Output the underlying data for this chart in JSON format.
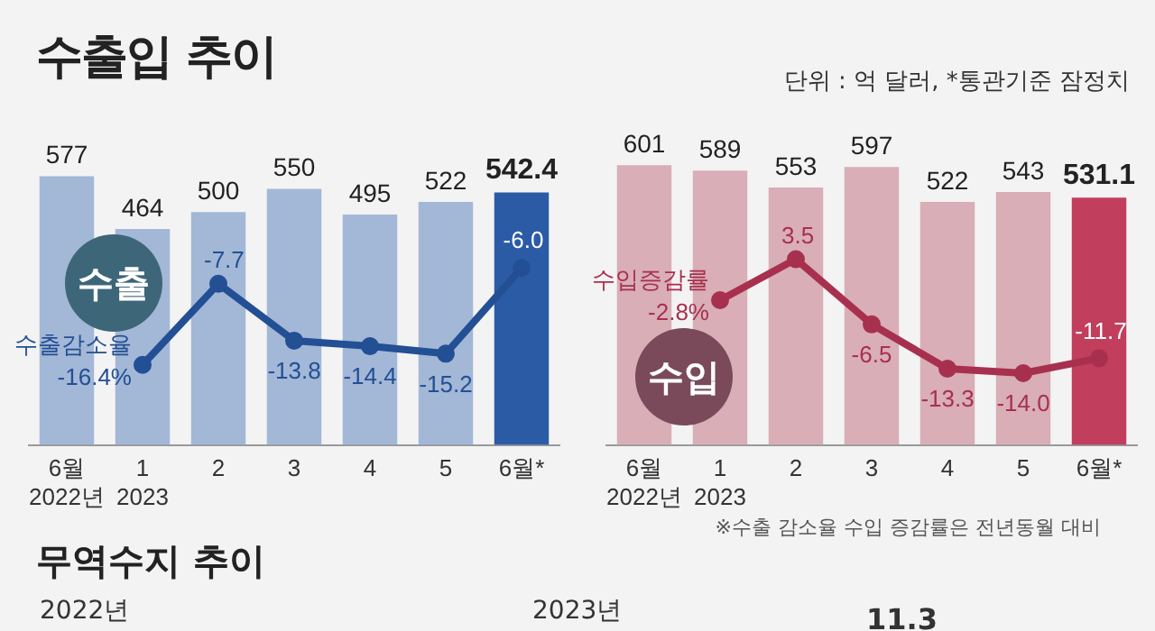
{
  "chart_data": [
    {
      "type": "bar",
      "title": "수출입 추이",
      "categories": [
        "6월\n2022년",
        "1\n2023",
        "2",
        "3",
        "4",
        "5",
        "6월*"
      ],
      "data_labels": true,
      "grid": false,
      "legend": false,
      "tick_labels": "x",
      "marker": "circle",
      "annotations": [
        "수출"
      ],
      "series": [
        {
          "type": "bar",
          "colors": [
            "#a3b7d7",
            "#a3b7d7",
            "#a3b7d7",
            "#a3b7d7",
            "#a3b7d7",
            "#a3b7d7",
            "#2c5ba6"
          ],
          "values": [
            577,
            464,
            500,
            550,
            495,
            522,
            542.4
          ]
        },
        {
          "type": "line",
          "name": "수출감소율",
          "color": "#234f94",
          "axis": "y2",
          "values": [
            null,
            -16.4,
            -7.7,
            -13.8,
            -14.4,
            -15.2,
            -6.0
          ],
          "value_labels": [
            null,
            "-16.4%",
            "-7.7",
            "-13.8",
            "-14.4",
            "-15.2",
            "-6.0"
          ]
        }
      ]
    },
    {
      "type": "bar",
      "subtitle": "단위 : 억 달러, *통관기준 잠정치",
      "categories": [
        "6월\n2022년",
        "1\n2023",
        "2",
        "3",
        "4",
        "5",
        "6월*"
      ],
      "data_labels": true,
      "grid": false,
      "legend": false,
      "tick_labels": "x",
      "marker": "circle",
      "annotations": [
        "수입",
        "※수출 감소율 수입 증감률은 전년동월 대비"
      ],
      "series": [
        {
          "type": "bar",
          "colors": [
            "#d9aeb7",
            "#d9aeb7",
            "#d9aeb7",
            "#d9aeb7",
            "#d9aeb7",
            "#d9aeb7",
            "#c23e5d"
          ],
          "values": [
            601,
            589,
            553,
            597,
            522,
            543,
            531.1
          ]
        },
        {
          "type": "line",
          "name": "수입증감률",
          "color": "#a8304f",
          "axis": "y2",
          "values": [
            null,
            -2.8,
            3.5,
            -6.5,
            -13.3,
            -14.0,
            -11.7
          ],
          "value_labels": [
            null,
            "-2.8%",
            "3.5",
            "-6.5",
            "-13.3",
            "-14.0",
            "-11.7"
          ]
        }
      ]
    },
    {
      "type": "other",
      "title": "무역수지 추이",
      "annotations": [
        "2022년",
        "2023년",
        "11.3"
      ]
    }
  ]
}
